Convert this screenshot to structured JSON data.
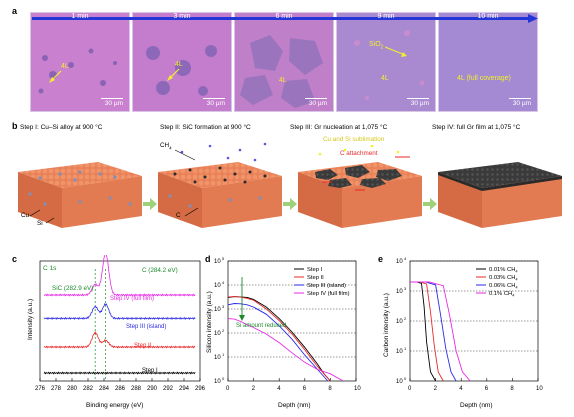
{
  "panels": {
    "a": "a",
    "b": "b",
    "c": "c",
    "d": "d",
    "e": "e"
  },
  "panel_a": {
    "tiles": [
      {
        "time": "1 min",
        "label": "4L",
        "scale": "30 µm"
      },
      {
        "time": "3 min",
        "label": "4L",
        "scale": "30 µm"
      },
      {
        "time": "6 min",
        "label": "4L",
        "scale": "30 µm"
      },
      {
        "time": "9 min",
        "label": "4L",
        "extra": "SiO",
        "extra_sub": "2",
        "scale": "30 µm"
      },
      {
        "time": "10 min",
        "label": "4L (full coverage)",
        "scale": "30 µm"
      }
    ]
  },
  "panel_b": {
    "steps": [
      "Step I: Cu–Si alloy at 900 °C",
      "Step II: SiC formation at 900 °C",
      "Step III: Gr nucleation at 1,075 °C",
      "Step IV: full Gr film at 1,075 °C"
    ],
    "labels": {
      "cu": "Cu",
      "si": "Si",
      "ch4": "CH",
      "ch4_sub": "4",
      "c": "C",
      "cu_si_sublimation": "Cu and Si sublimation",
      "c_attachment": "C attachment"
    },
    "colors": {
      "copper": "#e9825a",
      "silicon": "#7e8fb8",
      "graphene": "#3a3a3a",
      "green_arrow": "#9fd07a"
    }
  },
  "panel_c": {
    "ylabel": "Intensity (a.u.)",
    "xlabel": "Binding energy (eV)",
    "x_ticks": [
      "276",
      "278",
      "280",
      "282",
      "284",
      "286",
      "288",
      "290",
      "292",
      "294",
      "296"
    ],
    "annotations": {
      "c1s": "C 1s",
      "c_peak": "C (284.2 eV)",
      "sic_peak": "SiC (282.9 eV)"
    },
    "series": [
      {
        "name": "Step IV (full film)",
        "color": "#e62ae6"
      },
      {
        "name": "Step III (island)",
        "color": "#2a2ae6"
      },
      {
        "name": "Step II",
        "color": "#e62a2a"
      },
      {
        "name": "Step I",
        "color": "#000000"
      }
    ]
  },
  "panel_d": {
    "ylabel": "Silicon intensity (a.u.)",
    "xlabel": "Depth (nm)",
    "x_ticks": [
      "0",
      "2",
      "4",
      "6",
      "8",
      "10"
    ],
    "y_ticks": [
      "10",
      "10",
      "10",
      "10",
      "10",
      "10"
    ],
    "y_exps": [
      "0",
      "1",
      "2",
      "3",
      "4",
      "5"
    ],
    "annotation": "Si amount reduced",
    "legend": [
      {
        "name": "Step I",
        "color": "#000000"
      },
      {
        "name": "Step II",
        "color": "#e62a2a"
      },
      {
        "name": "Step III (island)",
        "color": "#2a2ae6"
      },
      {
        "name": "Step IV (full film)",
        "color": "#e62ae6"
      }
    ]
  },
  "panel_e": {
    "ylabel": "Carbon intensity (a.u.)",
    "xlabel": "Depth (nm)",
    "x_ticks": [
      "0",
      "2",
      "4",
      "6",
      "8",
      "10"
    ],
    "y_ticks": [
      "10",
      "10",
      "10",
      "10",
      "10"
    ],
    "y_exps": [
      "0",
      "1",
      "2",
      "3",
      "4"
    ],
    "legend": [
      {
        "name": "0.01% CH",
        "sub": "4",
        "color": "#000000"
      },
      {
        "name": "0.03% CH",
        "sub": "4",
        "color": "#e62a2a"
      },
      {
        "name": "0.06% CH",
        "sub": "4",
        "color": "#2a2ae6"
      },
      {
        "name": "0.1% CH",
        "sub": "4",
        "color": "#e62ae6"
      }
    ]
  },
  "chart_data": [
    {
      "type": "line",
      "panel": "c",
      "xlabel": "Binding energy (eV)",
      "ylabel": "Intensity (a.u.)",
      "xlim": [
        276,
        296
      ],
      "x_direction": "increasing",
      "peaks": {
        "C (284.2 eV)": 284.2,
        "SiC (282.9 eV)": 282.9
      },
      "series": [
        {
          "name": "Step I",
          "offset": 0.0,
          "peaks": []
        },
        {
          "name": "Step II",
          "offset": 1.0,
          "peaks": [
            [
              282.9,
              0.55
            ],
            [
              284.2,
              0.25
            ]
          ]
        },
        {
          "name": "Step III (island)",
          "offset": 2.1,
          "peaks": [
            [
              282.9,
              0.45
            ],
            [
              284.2,
              0.55
            ]
          ]
        },
        {
          "name": "Step IV (full film)",
          "offset": 3.0,
          "peaks": [
            [
              282.9,
              0.4
            ],
            [
              284.2,
              1.6
            ]
          ]
        }
      ]
    },
    {
      "type": "line",
      "panel": "d",
      "xlabel": "Depth (nm)",
      "ylabel": "Silicon intensity (a.u.)",
      "xlim": [
        0,
        10
      ],
      "ylim": [
        1,
        100000
      ],
      "yscale": "log",
      "series": [
        {
          "name": "Step I",
          "x": [
            0,
            0.5,
            1,
            1.5,
            2,
            3,
            4,
            5,
            6,
            7,
            7.5,
            8
          ],
          "y": [
            3000,
            3300,
            3200,
            3000,
            2500,
            1200,
            400,
            110,
            25,
            5,
            2,
            1
          ]
        },
        {
          "name": "Step II",
          "x": [
            0,
            0.5,
            1,
            1.5,
            2,
            3,
            4,
            5,
            6,
            7,
            7.5,
            8
          ],
          "y": [
            3200,
            3300,
            3100,
            2800,
            2300,
            1000,
            330,
            90,
            20,
            4,
            2,
            1
          ]
        },
        {
          "name": "Step III (island)",
          "x": [
            0,
            0.5,
            1,
            1.5,
            2,
            3,
            4,
            5,
            6,
            7,
            7.8
          ],
          "y": [
            1500,
            1700,
            1650,
            1500,
            1200,
            600,
            200,
            55,
            12,
            3,
            1
          ]
        },
        {
          "name": "Step IV (full film)",
          "x": [
            0,
            0.5,
            1,
            1.5,
            2,
            3,
            4,
            5,
            6,
            7,
            8,
            9
          ],
          "y": [
            400,
            380,
            300,
            220,
            170,
            90,
            40,
            15,
            6,
            3,
            2,
            1
          ]
        }
      ]
    },
    {
      "type": "line",
      "panel": "e",
      "xlabel": "Depth (nm)",
      "ylabel": "Carbon intensity (a.u.)",
      "xlim": [
        0,
        10
      ],
      "ylim": [
        1,
        10000
      ],
      "yscale": "log",
      "series": [
        {
          "name": "0.01% CH4",
          "x": [
            0,
            0.5,
            0.9,
            1.1,
            1.3,
            1.6,
            2.0
          ],
          "y": [
            2000,
            2000,
            1800,
            300,
            20,
            2,
            1
          ]
        },
        {
          "name": "0.03% CH4",
          "x": [
            0,
            0.8,
            1.3,
            1.6,
            1.9,
            2.2,
            2.6
          ],
          "y": [
            2000,
            2000,
            1700,
            200,
            15,
            2,
            1
          ]
        },
        {
          "name": "0.06% CH4",
          "x": [
            0,
            1.2,
            2.0,
            2.4,
            2.8,
            3.2,
            3.6
          ],
          "y": [
            2000,
            2000,
            1600,
            150,
            12,
            2,
            1
          ]
        },
        {
          "name": "0.1% CH4",
          "x": [
            0,
            1.5,
            2.6,
            3.1,
            3.6,
            4.1,
            4.7
          ],
          "y": [
            2000,
            2000,
            1500,
            150,
            10,
            2,
            1
          ]
        }
      ]
    }
  ]
}
